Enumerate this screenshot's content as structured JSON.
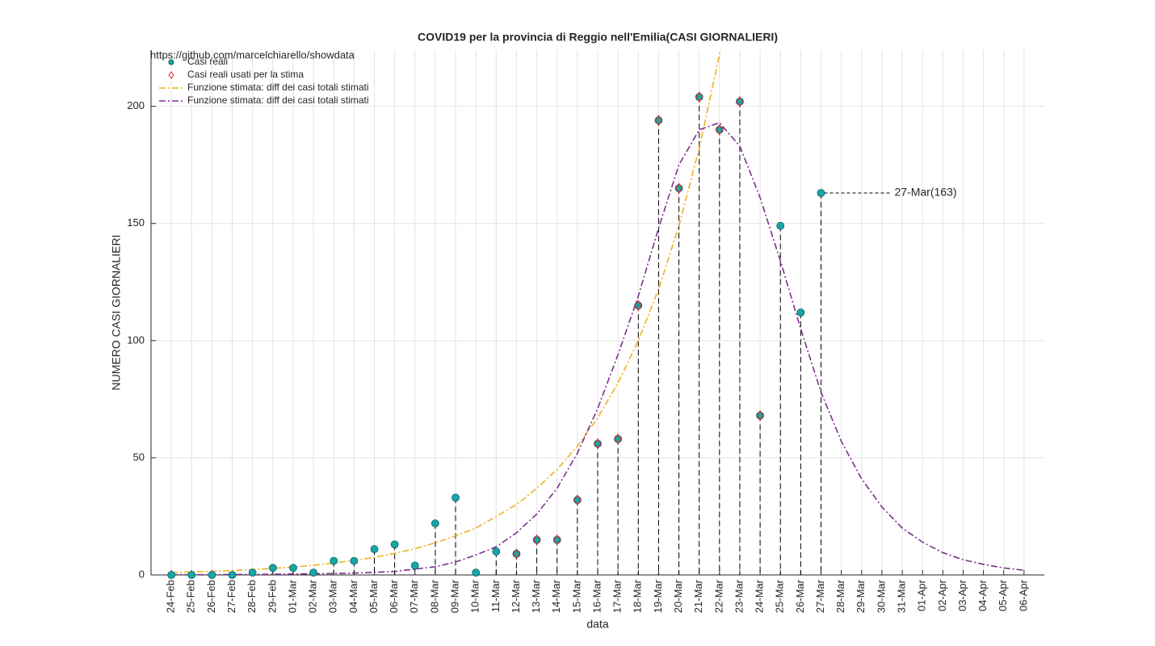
{
  "chart_data": {
    "type": "line",
    "title": "COVID19 per la provincia di Reggio nell'Emilia(CASI GIORNALIERI)",
    "watermark": "https://github.com/marcelchiarello/showdata",
    "xlabel": "data",
    "ylabel": "NUMERO CASI GIORNALIERI",
    "categories": [
      "24-Feb",
      "25-Feb",
      "26-Feb",
      "27-Feb",
      "28-Feb",
      "29-Feb",
      "01-Mar",
      "02-Mar",
      "03-Mar",
      "04-Mar",
      "05-Mar",
      "06-Mar",
      "07-Mar",
      "08-Mar",
      "09-Mar",
      "10-Mar",
      "11-Mar",
      "12-Mar",
      "13-Mar",
      "14-Mar",
      "15-Mar",
      "16-Mar",
      "17-Mar",
      "18-Mar",
      "19-Mar",
      "20-Mar",
      "21-Mar",
      "22-Mar",
      "23-Mar",
      "24-Mar",
      "25-Mar",
      "26-Mar",
      "27-Mar",
      "28-Mar",
      "29-Mar",
      "30-Mar",
      "31-Mar",
      "01-Apr",
      "02-Apr",
      "03-Apr",
      "04-Apr",
      "05-Apr",
      "06-Apr"
    ],
    "ylim": [
      0,
      224
    ],
    "yticks": [
      0,
      50,
      100,
      150,
      200
    ],
    "grid": true,
    "legend": "upper left",
    "series": [
      {
        "name": "Casi reali",
        "color": "#17a6a6",
        "marker": "circle",
        "line": "none",
        "stems": true,
        "values": [
          0,
          0,
          0,
          0,
          1,
          3,
          3,
          1,
          6,
          6,
          11,
          13,
          4,
          22,
          33,
          1,
          10,
          9,
          15,
          15,
          32,
          56,
          58,
          115,
          194,
          165,
          204,
          190,
          202,
          68,
          149,
          112,
          163,
          null,
          null,
          null,
          null,
          null,
          null,
          null,
          null,
          null,
          null
        ]
      },
      {
        "name": "Casi reali usati per la stima",
        "color": "#e8262b",
        "marker": "diamond",
        "line": "none",
        "values": [
          null,
          null,
          null,
          null,
          null,
          null,
          null,
          null,
          null,
          null,
          null,
          null,
          null,
          null,
          null,
          null,
          null,
          9,
          15,
          15,
          32,
          56,
          58,
          115,
          194,
          165,
          204,
          190,
          202,
          68,
          null,
          null,
          null,
          null,
          null,
          null,
          null,
          null,
          null,
          null,
          null,
          null,
          null
        ]
      },
      {
        "name": "Funzione stimata: diff dei casi totali stimati",
        "color": "#edb120",
        "marker": "none",
        "line": "dashdot",
        "values": [
          1.0,
          1.3,
          1.5,
          1.9,
          2.3,
          2.8,
          3.4,
          4.1,
          5.1,
          6.2,
          7.5,
          9.2,
          11.2,
          13.7,
          16.7,
          20,
          25,
          30,
          37,
          45,
          55,
          67,
          82,
          100,
          122,
          149,
          182,
          222,
          271,
          null,
          null,
          null,
          null,
          null,
          null,
          null,
          null,
          null,
          null,
          null,
          null,
          null,
          null
        ]
      },
      {
        "name": "Funzione stimata: diff dei casi totali stimati",
        "color": "#7e2f8e",
        "marker": "none",
        "line": "dashdot",
        "values": [
          0.1,
          0.1,
          0.1,
          0.2,
          0.2,
          0.3,
          0.4,
          0.5,
          0.6,
          0.8,
          1.1,
          1.5,
          2.5,
          3.5,
          5.5,
          8.5,
          12,
          18,
          26,
          37,
          52,
          71,
          94,
          119,
          148,
          175,
          190,
          193,
          183,
          161,
          134,
          105,
          78,
          57,
          41,
          29,
          20,
          14,
          9.5,
          6.5,
          4.5,
          3,
          2
        ]
      }
    ],
    "annotations": [
      {
        "text": "27-Mar(163)"
      }
    ]
  }
}
